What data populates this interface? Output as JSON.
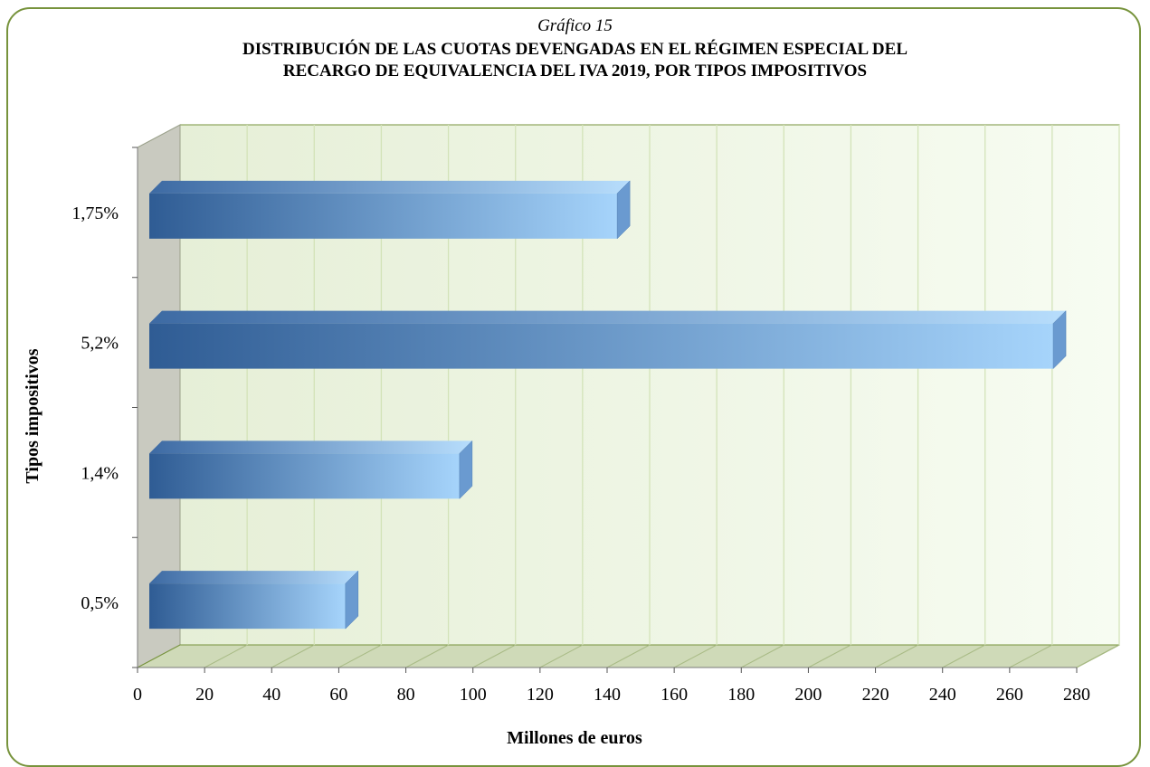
{
  "chart_data": {
    "type": "bar",
    "orientation": "horizontal",
    "subtitle": "Gráfico 15",
    "title_lines": [
      "DISTRIBUCIÓN DE LAS CUOTAS DEVENGADAS EN EL RÉGIMEN ESPECIAL DEL",
      "RECARGO DE EQUIVALENCIA DEL IVA 2019,  POR TIPOS IMPOSITIVOS"
    ],
    "categories": [
      "1,75%",
      "5,2%",
      "1,4%",
      "0,5%"
    ],
    "values": [
      143,
      273,
      96,
      62
    ],
    "xlabel": "Millones de euros",
    "ylabel": "Tipos impositivos",
    "xlim": [
      0,
      280
    ],
    "xticks": [
      "0",
      "20",
      "40",
      "60",
      "80",
      "100",
      "120",
      "140",
      "160",
      "180",
      "200",
      "220",
      "240",
      "260",
      "280"
    ],
    "grid": true,
    "legend": "none",
    "colors": {
      "bar_dark": "#2f5c94",
      "bar_light": "#a6d4fb",
      "bar_end": "#6a9ad0",
      "plot_bg_left": "#e6efd7",
      "plot_bg_right": "#f7fcf2",
      "grid": "#d3e3b8",
      "frame": "#77933c",
      "side_wall": "#c9cac0"
    }
  }
}
